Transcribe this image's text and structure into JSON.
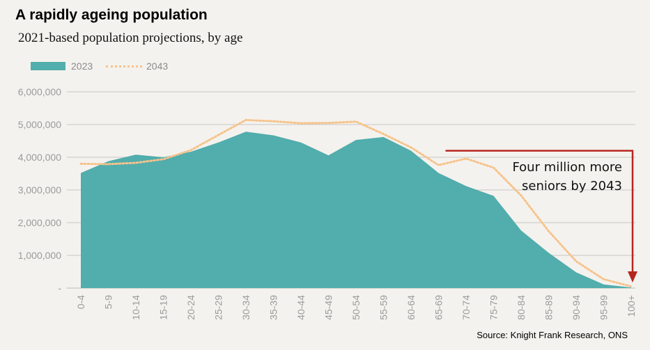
{
  "chart_data": {
    "type": "area",
    "title": "A rapidly ageing population",
    "subtitle": "2021-based population projections, by age",
    "categories": [
      "0-4",
      "5-9",
      "10-14",
      "15-19",
      "20-24",
      "25-29",
      "30-34",
      "35-39",
      "40-44",
      "45-49",
      "50-54",
      "55-59",
      "60-64",
      "65-69",
      "70-74",
      "75-79",
      "80-84",
      "85-89",
      "90-94",
      "95-99",
      "100+"
    ],
    "series": [
      {
        "name": "2023",
        "style": "area",
        "color": "#52adad",
        "values": [
          3520000,
          3880000,
          4080000,
          4000000,
          4170000,
          4450000,
          4780000,
          4670000,
          4450000,
          4060000,
          4530000,
          4620000,
          4200000,
          3520000,
          3120000,
          2820000,
          1760000,
          1080000,
          480000,
          110000,
          18000
        ]
      },
      {
        "name": "2043",
        "style": "dotted-line",
        "color": "#f6c38b",
        "values": [
          3800000,
          3790000,
          3830000,
          3940000,
          4220000,
          4680000,
          5140000,
          5100000,
          5040000,
          5050000,
          5090000,
          4710000,
          4300000,
          3760000,
          3960000,
          3680000,
          2830000,
          1740000,
          820000,
          270000,
          50000
        ]
      }
    ],
    "ylim": [
      0,
      6000000
    ],
    "yticks": [
      {
        "value": 0,
        "label": "-"
      },
      {
        "value": 1000000,
        "label": "1,000,000"
      },
      {
        "value": 2000000,
        "label": "2,000,000"
      },
      {
        "value": 3000000,
        "label": "3,000,000"
      },
      {
        "value": 4000000,
        "label": "4,000,000"
      },
      {
        "value": 5000000,
        "label": "5,000,000"
      },
      {
        "value": 6000000,
        "label": "6,000,000"
      }
    ],
    "xlabel": "",
    "ylabel": "",
    "grid": true,
    "legend_position": "top-left",
    "annotation": {
      "lines": [
        "Four million more",
        "seniors by 2043"
      ],
      "color": "#b5261e",
      "start_category": "65-69",
      "end_category": "100+",
      "level_value": 4200000
    },
    "source": "Source: Knight Frank Research, ONS"
  }
}
